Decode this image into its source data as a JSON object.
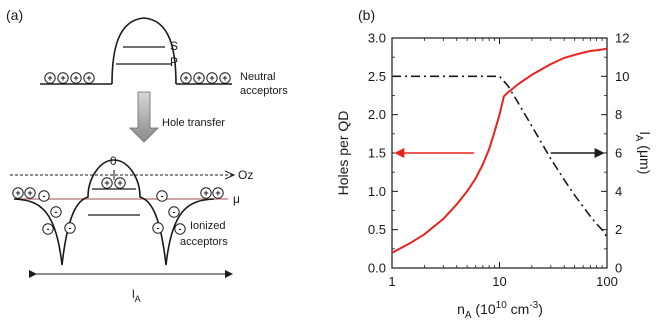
{
  "panel_a": {
    "label": "(a)",
    "level_s": "S",
    "level_p": "P",
    "neutral_label_1": "Neutral",
    "neutral_label_2": "acceptors",
    "hole_transfer": "Hole transfer",
    "origin": "0",
    "axis_oz": "Oz",
    "mu": "μ",
    "ionized_label_1": "Ionized",
    "ionized_label_2": "acceptors",
    "length_label": "l",
    "length_sub": "A",
    "plus": "+",
    "minus": "-"
  },
  "chart_data": {
    "type": "line",
    "panel_label": "(b)",
    "x_scale": "log",
    "xlim": [
      1,
      100
    ],
    "xticks": [
      1,
      10,
      100
    ],
    "xtick_labels": [
      "1",
      "10",
      "100"
    ],
    "xlabel": {
      "main": "n",
      "sub": "A",
      "rest": " (10",
      "exp1": "10",
      "unit": " cm",
      "exp2": "-3",
      "close": ")"
    },
    "left_axis": {
      "label": "Holes per QD",
      "ylim": [
        0,
        3.0
      ],
      "ticks": [
        0.0,
        0.5,
        1.0,
        1.5,
        2.0,
        2.5,
        3.0
      ],
      "tick_labels": [
        "0.0",
        "0.5",
        "1.0",
        "1.5",
        "2.0",
        "2.5",
        "3.0"
      ]
    },
    "right_axis": {
      "label_main": "l",
      "label_sub": "A",
      "label_rest": " (μm)",
      "ylim": [
        0,
        12
      ],
      "ticks": [
        0,
        2,
        4,
        6,
        8,
        10,
        12
      ],
      "tick_labels": [
        "0",
        "2",
        "4",
        "6",
        "8",
        "10",
        "12"
      ]
    },
    "series": [
      {
        "axis": "left",
        "color": "#e8231f",
        "style": "solid",
        "x": [
          1,
          1.5,
          2,
          3,
          4,
          5,
          6,
          7,
          8,
          9,
          10,
          11,
          12,
          15,
          20,
          30,
          40,
          50,
          60,
          70,
          80,
          90,
          100
        ],
        "y": [
          0.2,
          0.33,
          0.44,
          0.64,
          0.83,
          1.0,
          1.17,
          1.35,
          1.55,
          1.78,
          2.0,
          2.24,
          2.29,
          2.4,
          2.52,
          2.66,
          2.74,
          2.78,
          2.81,
          2.83,
          2.84,
          2.85,
          2.86
        ]
      },
      {
        "axis": "right",
        "color": "#1a1a1a",
        "style": "dash-dot",
        "x": [
          1,
          2,
          5,
          10,
          12,
          15,
          20,
          30,
          40,
          50,
          60,
          70,
          80,
          90,
          100
        ],
        "y": [
          10,
          10,
          10,
          10,
          9.5,
          8.6,
          7.4,
          5.7,
          4.6,
          3.8,
          3.2,
          2.7,
          2.3,
          2.0,
          1.6
        ]
      }
    ],
    "arrows": [
      {
        "direction": "left",
        "color": "#e8231f",
        "target_axis": "left"
      },
      {
        "direction": "right",
        "color": "#1a1a1a",
        "target_axis": "right"
      }
    ]
  }
}
